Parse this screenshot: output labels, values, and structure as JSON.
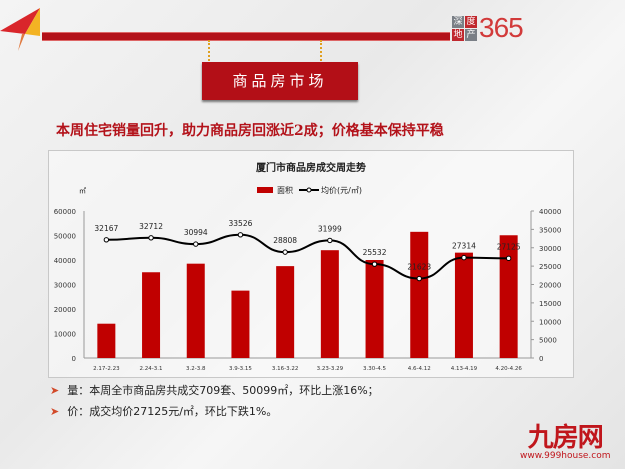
{
  "header": {
    "section_title": "商品房市场",
    "headline": "本周住宅销量回升，助力商品房回涨近2成；价格基本保持平稳",
    "logo": {
      "cells": [
        "深",
        "度",
        "地",
        "产"
      ],
      "number": "365"
    }
  },
  "chart_data": {
    "type": "bar+line",
    "title": "厦门市商品房成交周走势",
    "left_unit": "㎡",
    "categories": [
      "2.17-2.23",
      "2.24-3.1",
      "3.2-3.8",
      "3.9-3.15",
      "3.16-3.22",
      "3.23-3.29",
      "3.30-4.5",
      "4.6-4.12",
      "4.13-4.19",
      "4.20-4.26"
    ],
    "series": [
      {
        "name": "面积",
        "type": "bar",
        "axis": "left",
        "color": "#c00000",
        "values": [
          14000,
          35000,
          38500,
          27500,
          37500,
          44000,
          40000,
          51500,
          43000,
          50099
        ]
      },
      {
        "name": "均价(元/㎡)",
        "type": "line",
        "axis": "right",
        "color": "#000000",
        "values": [
          32167,
          32712,
          30994,
          33526,
          28808,
          31999,
          25532,
          21623,
          27314,
          27125
        ]
      }
    ],
    "left_ylim": [
      0,
      60000
    ],
    "left_ticks": [
      "0",
      "10000",
      "20000",
      "30000",
      "40000",
      "50000",
      "60000"
    ],
    "right_ylim": [
      0,
      40000
    ],
    "right_ticks": [
      "0",
      "5000",
      "10000",
      "15000",
      "20000",
      "25000",
      "30000",
      "35000",
      "40000"
    ],
    "legend": "top-center",
    "grid": false
  },
  "bullets": [
    "量：本周全市商品房共成交709套、50099㎡，环比上涨16%；",
    "价：成交均价27125元/㎡，环比下跌1%。"
  ],
  "footer_logo": {
    "name": "九房网",
    "url": "www.999house.com"
  }
}
